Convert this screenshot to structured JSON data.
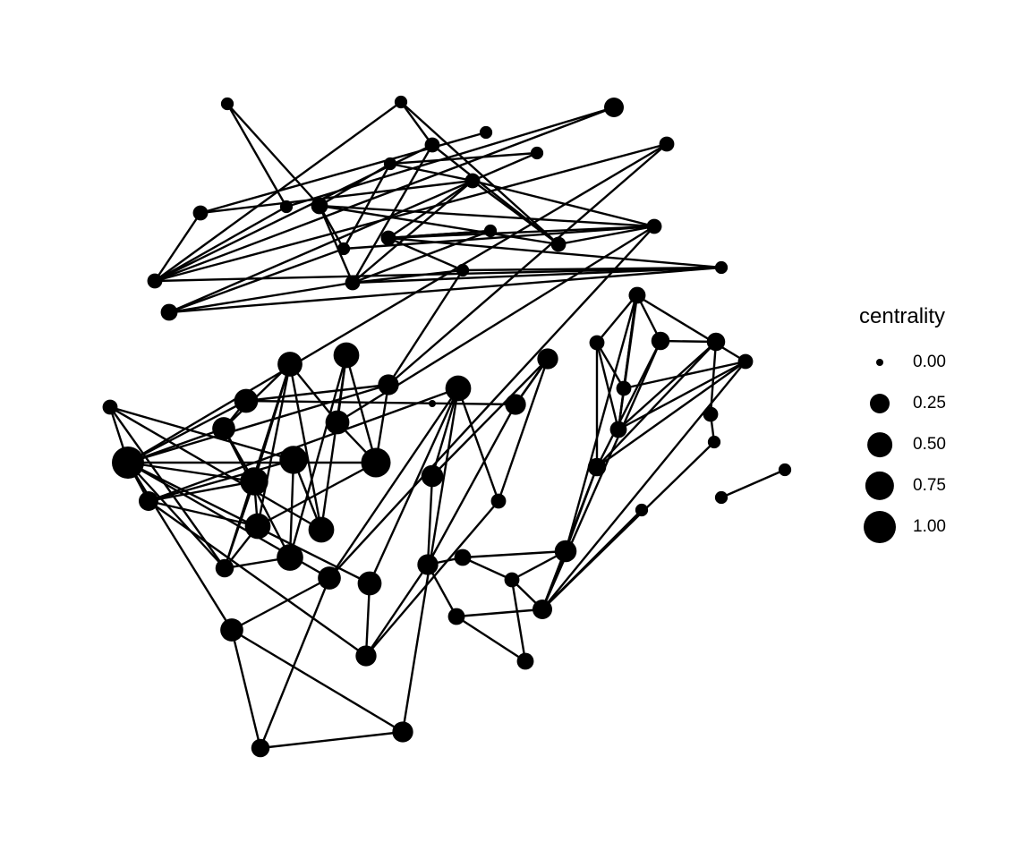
{
  "legend": {
    "title": "centrality",
    "items": [
      {
        "label": "0.00",
        "value": 0.0
      },
      {
        "label": "0.25",
        "value": 0.25
      },
      {
        "label": "0.50",
        "value": 0.5
      },
      {
        "label": "0.75",
        "value": 0.75
      },
      {
        "label": "1.00",
        "value": 1.0
      }
    ]
  },
  "colors": {
    "node": "#000000",
    "edge": "#000000",
    "background": "#ffffff"
  },
  "graph": {
    "node_centrality": [
      0.0,
      0.05,
      0.05,
      0.05,
      0.05,
      0.1,
      0.25,
      0.1,
      0.1,
      0.05,
      0.15,
      0.05,
      0.1,
      0.05,
      0.1,
      0.05,
      0.05,
      0.1,
      0.1,
      0.15,
      0.1,
      0.1,
      0.05,
      0.3,
      0.5,
      0.55,
      0.45,
      0.1,
      0.45,
      0.4,
      0.7,
      0.7,
      0.55,
      0.55,
      0.6,
      0.8,
      1.0,
      0.25,
      0.2,
      0.4,
      0.45,
      0.4,
      0.3,
      0.2,
      0.3,
      0.55,
      0.3,
      0.3,
      0.35,
      0.1,
      0.3,
      0.15,
      0.15,
      0.1,
      0.15,
      0.25,
      0.35,
      0.2,
      0.1,
      0.2,
      0.1,
      0.1,
      0.15,
      0.2,
      0.1,
      0.1,
      0.05,
      0.05,
      0.05,
      0.05,
      0.15
    ],
    "edges": [
      [
        1,
        9
      ],
      [
        1,
        10
      ],
      [
        9,
        6
      ],
      [
        2,
        5
      ],
      [
        3,
        8
      ],
      [
        4,
        12
      ],
      [
        11,
        4
      ],
      [
        8,
        18
      ],
      [
        8,
        12
      ],
      [
        18,
        9
      ],
      [
        18,
        7
      ],
      [
        5,
        17
      ],
      [
        5,
        20
      ],
      [
        20,
        21
      ],
      [
        20,
        12
      ],
      [
        13,
        14
      ],
      [
        11,
        15
      ],
      [
        14,
        12
      ],
      [
        14,
        16
      ],
      [
        14,
        13
      ],
      [
        16,
        17
      ],
      [
        17,
        12
      ],
      [
        15,
        10
      ],
      [
        10,
        17
      ],
      [
        19,
        12
      ],
      [
        19,
        17
      ],
      [
        6,
        18
      ],
      [
        10,
        21
      ],
      [
        15,
        19
      ],
      [
        19,
        22
      ],
      [
        18,
        22
      ],
      [
        20,
        10
      ],
      [
        11,
        12
      ],
      [
        21,
        14
      ],
      [
        21,
        12
      ],
      [
        22,
        16
      ],
      [
        2,
        18
      ],
      [
        2,
        20
      ],
      [
        15,
        21
      ],
      [
        14,
        22
      ],
      [
        11,
        10
      ],
      [
        17,
        22
      ],
      [
        13,
        17
      ],
      [
        18,
        5
      ],
      [
        7,
        23
      ],
      [
        16,
        23
      ],
      [
        7,
        36
      ],
      [
        21,
        39
      ],
      [
        21,
        26
      ],
      [
        23,
        35
      ],
      [
        23,
        28
      ],
      [
        23,
        36
      ],
      [
        24,
        31
      ],
      [
        24,
        32
      ],
      [
        25,
        35
      ],
      [
        25,
        26
      ],
      [
        25,
        33
      ],
      [
        25,
        34
      ],
      [
        26,
        24
      ],
      [
        27,
        36
      ],
      [
        28,
        36
      ],
      [
        28,
        46
      ],
      [
        29,
        28
      ],
      [
        29,
        36
      ],
      [
        29,
        24
      ],
      [
        29,
        34
      ],
      [
        30,
        27
      ],
      [
        30,
        37
      ],
      [
        30,
        33
      ],
      [
        31,
        36
      ],
      [
        31,
        32
      ],
      [
        32,
        38
      ],
      [
        33,
        27
      ],
      [
        34,
        38
      ],
      [
        35,
        36
      ],
      [
        35,
        32
      ],
      [
        36,
        37
      ],
      [
        36,
        38
      ],
      [
        36,
        41
      ],
      [
        36,
        40
      ],
      [
        36,
        39
      ],
      [
        37,
        31
      ],
      [
        38,
        31
      ],
      [
        38,
        27
      ],
      [
        39,
        43
      ],
      [
        39,
        45
      ],
      [
        40,
        42
      ],
      [
        40,
        45
      ],
      [
        41,
        43
      ],
      [
        42,
        37
      ],
      [
        43,
        44
      ],
      [
        44,
        41
      ],
      [
        45,
        44
      ],
      [
        45,
        37
      ],
      [
        46,
        47
      ],
      [
        47,
        46
      ],
      [
        47,
        49
      ],
      [
        47,
        48
      ],
      [
        48,
        45
      ],
      [
        48,
        50
      ],
      [
        49,
        45
      ],
      [
        50,
        46
      ],
      [
        50,
        51
      ],
      [
        51,
        56
      ],
      [
        52,
        50
      ],
      [
        52,
        55
      ],
      [
        53,
        51
      ],
      [
        53,
        56
      ],
      [
        54,
        52
      ],
      [
        54,
        53
      ],
      [
        55,
        64
      ],
      [
        55,
        56
      ],
      [
        56,
        57
      ],
      [
        57,
        58
      ],
      [
        58,
        60
      ],
      [
        58,
        62
      ],
      [
        59,
        57
      ],
      [
        59,
        63
      ],
      [
        60,
        61
      ],
      [
        61,
        62
      ],
      [
        62,
        64
      ],
      [
        62,
        70
      ],
      [
        63,
        65
      ],
      [
        64,
        60
      ],
      [
        65,
        66
      ],
      [
        66,
        55
      ],
      [
        67,
        68
      ],
      [
        69,
        55
      ],
      [
        70,
        60
      ],
      [
        70,
        59
      ],
      [
        57,
        64
      ],
      [
        55,
        57
      ],
      [
        56,
        60
      ],
      [
        57,
        63
      ],
      [
        58,
        61
      ],
      [
        61,
        64
      ],
      [
        62,
        63
      ],
      [
        55,
        59
      ],
      [
        38,
        24
      ],
      [
        33,
        24
      ],
      [
        34,
        30
      ],
      [
        35,
        26
      ],
      [
        39,
        41
      ],
      [
        31,
        29
      ],
      [
        32,
        37
      ],
      [
        53,
        55
      ],
      [
        49,
        42
      ],
      [
        42,
        50
      ],
      [
        60,
        62
      ]
    ]
  }
}
